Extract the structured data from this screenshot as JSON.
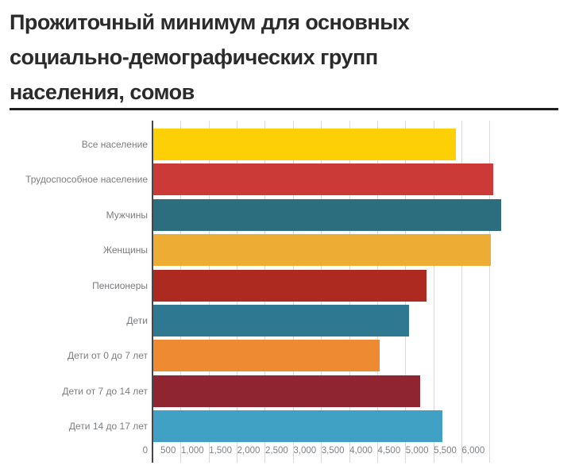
{
  "header": {
    "title": "Прожиточный минимум для основных социально-демографических групп населения, сомов"
  },
  "chart_data": {
    "type": "bar",
    "orientation": "horizontal",
    "title": "Прожиточный минимум для основных социально-демографических групп населения, сомов",
    "unit": "сомов",
    "categories": [
      "Все население",
      "Трудоспособное население",
      "Мужчины",
      "Женщины",
      "Пенсионеры",
      "Дети",
      "Дети от 0 до 7 лет",
      "Дети от 7 до 14 лет",
      "Дети 14 до 17 лет"
    ],
    "values": [
      5390,
      6055,
      6190,
      6010,
      4860,
      4555,
      4025,
      4750,
      5145
    ],
    "bar_colors": [
      "#fdd005",
      "#cb3a36",
      "#2d6e7e",
      "#edac34",
      "#ad2a21",
      "#2f7892",
      "#ee8a31",
      "#8e2531",
      "#41a1c4"
    ],
    "xlabel": "",
    "ylabel": "",
    "xlim": [
      0,
      6000
    ],
    "xtick_step": 500,
    "xtick_labels": [
      "0",
      "500",
      "1,000",
      "1,500",
      "2,000",
      "2,500",
      "3,000",
      "3,500",
      "4,000",
      "4,500",
      "5,000",
      "5,500",
      "6,000"
    ],
    "grid": true,
    "legend_position": "none",
    "colors": {
      "title": "#2b2b2b",
      "rule": "#1f1f1f",
      "axis": "#44484c",
      "gridline": "#d9d9d9",
      "category_label": "#7a7d80",
      "tick_label": "#7f8285",
      "background": "#ffffff"
    }
  }
}
